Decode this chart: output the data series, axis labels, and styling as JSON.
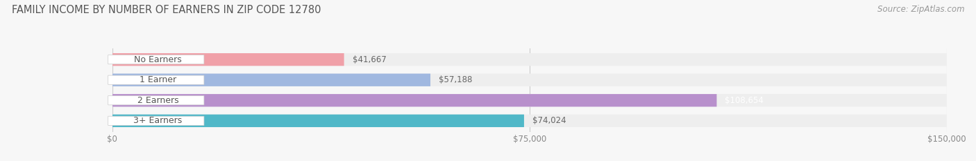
{
  "title": "Family Income by Number of Earners in Zip Code 12780",
  "title_display": "FAMILY INCOME BY NUMBER OF EARNERS IN ZIP CODE 12780",
  "source": "Source: ZipAtlas.com",
  "categories": [
    "No Earners",
    "1 Earner",
    "2 Earners",
    "3+ Earners"
  ],
  "values": [
    41667,
    57188,
    108654,
    74024
  ],
  "bar_colors": [
    "#f0a0a8",
    "#a0b8e0",
    "#b890cc",
    "#50b8c8"
  ],
  "bar_bg_colors": [
    "#eeeeee",
    "#eeeeee",
    "#eeeeee",
    "#eeeeee"
  ],
  "value_labels": [
    "$41,667",
    "$57,188",
    "$108,654",
    "$74,024"
  ],
  "value_label_colors": [
    "#666666",
    "#666666",
    "#ffffff",
    "#666666"
  ],
  "xlim": [
    0,
    150000
  ],
  "xtick_vals": [
    0,
    75000,
    150000
  ],
  "xtick_labels": [
    "$0",
    "$75,000",
    "$150,000"
  ],
  "figsize": [
    14.06,
    2.33
  ],
  "dpi": 100,
  "bg_color": "#f7f7f7",
  "title_color": "#555555",
  "title_fontsize": 10.5,
  "source_color": "#999999",
  "source_fontsize": 8.5,
  "cat_label_color": "#555555",
  "cat_label_fontsize": 9
}
